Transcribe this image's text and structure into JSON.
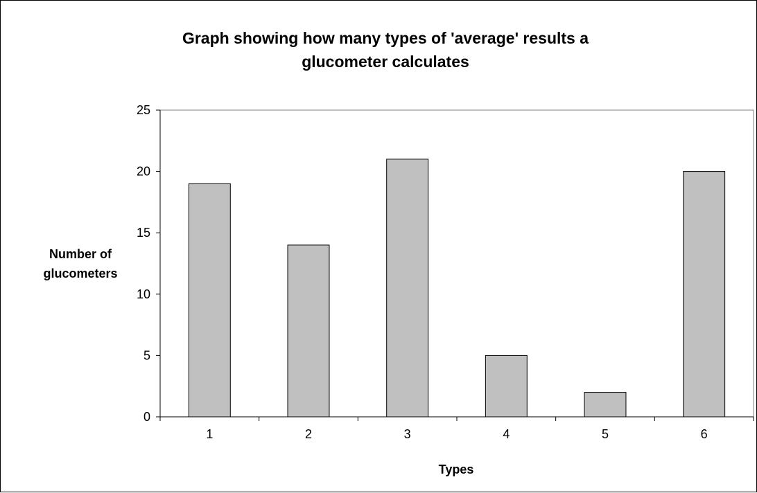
{
  "chart_data": {
    "type": "bar",
    "title_lines": [
      "Graph showing how many types of 'average' results a",
      "glucometer calculates"
    ],
    "xlabel": "Types",
    "ylabel_lines": [
      "Number of",
      "glucometers"
    ],
    "categories": [
      "1",
      "2",
      "3",
      "4",
      "5",
      "6"
    ],
    "values": [
      19,
      14,
      21,
      5,
      2,
      20
    ],
    "ylim": [
      0,
      25
    ],
    "yticks": [
      0,
      5,
      10,
      15,
      20,
      25
    ],
    "bar_color": "#c0c0c0",
    "bar_edge_color": "#000000",
    "grid": false,
    "legend": "none"
  }
}
